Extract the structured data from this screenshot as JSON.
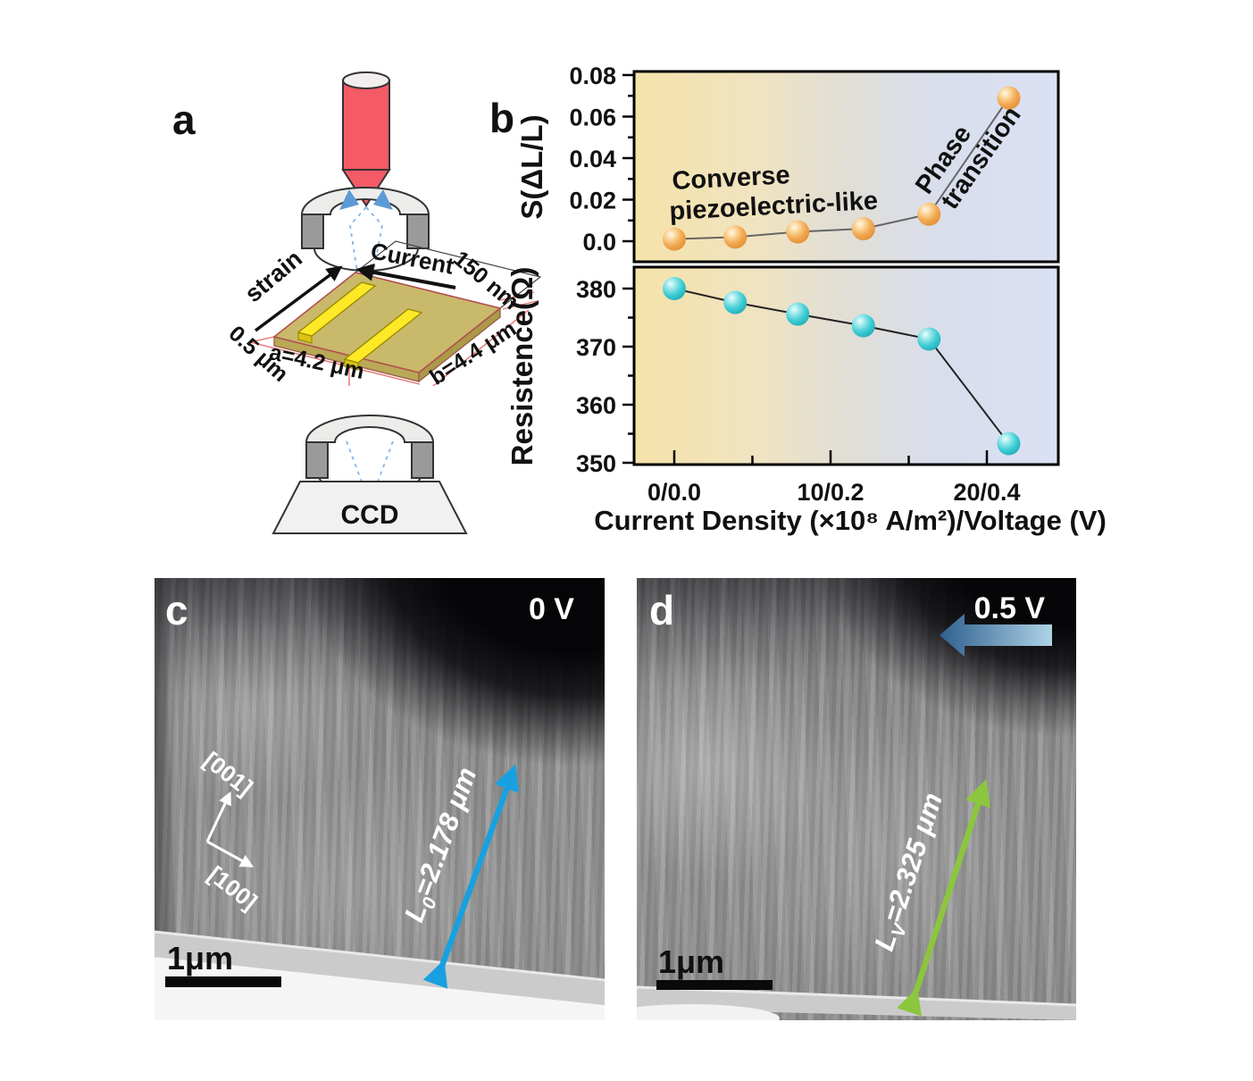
{
  "figure": {
    "panel_a": {
      "letter": "a",
      "labels": {
        "strain": "strain",
        "current": "Current",
        "thickness": "150 nm",
        "edge_left": "0.5 μm",
        "dim_a": "a=4.2 μm",
        "dim_b": "b=4.4 μm",
        "detector": "CCD"
      }
    },
    "panel_b": {
      "letter": "b",
      "chart_data": [
        {
          "type": "scatter",
          "series": [
            {
              "name": "strain S(dL/L)",
              "x": [
                0,
                3.9,
                7.9,
                12.1,
                16.3,
                21.4
              ],
              "y": [
                0.001,
                0.002,
                0.0045,
                0.006,
                0.013,
                0.069
              ]
            }
          ],
          "ylabel": "S(ΔL/L)",
          "ytick_values": [
            0.08,
            0.06,
            0.04,
            0.02,
            0.0
          ],
          "ytick_labels": [
            "0.08",
            "0.06",
            "0.04",
            "0.02",
            "0.0"
          ],
          "ylim": [
            -0.006,
            0.084
          ],
          "xlim": [
            -2.6,
            24.6
          ],
          "grid": false,
          "legend": "none",
          "marker_color": "#f0a455"
        },
        {
          "type": "scatter",
          "series": [
            {
              "name": "resistance",
              "x": [
                0,
                3.9,
                7.9,
                12.1,
                16.3,
                21.4
              ],
              "y": [
                380,
                377.6,
                375.6,
                373.6,
                371.3,
                353.3
              ]
            }
          ],
          "ylabel": "Resistence(Ω)",
          "ytick_values": [
            380,
            370,
            360,
            350
          ],
          "ytick_labels": [
            "380",
            "370",
            "360",
            "350"
          ],
          "ylim": [
            348.4,
            383.4
          ],
          "xlim": [
            -2.6,
            24.6
          ],
          "xtick_values": [
            0,
            10,
            20
          ],
          "xtick_labels": [
            "0/0.0",
            "10/0.2",
            "20/0.4"
          ],
          "xminor_values": [
            5,
            15
          ],
          "xlabel": "Current Density (×10⁸ A/m²)/Voltage (V)",
          "grid": false,
          "legend": "none",
          "marker_color": "#3fcdd4"
        }
      ],
      "annotations": {
        "regime1_line1": "Converse",
        "regime1_line2": "piezoelectric-like",
        "regime2_line1": "Phase",
        "regime2_line2": "transition"
      }
    },
    "panel_c": {
      "letter": "c",
      "voltage": "0 V",
      "axis_up": "[001]",
      "axis_right": "[100]",
      "measurement": {
        "pre": "L",
        "sub": "0",
        "post": "=2.178 μm"
      },
      "scalebar": "1μm"
    },
    "panel_d": {
      "letter": "d",
      "voltage": "0.5 V",
      "measurement": {
        "pre": "L",
        "sub": "V",
        "post": "=2.325 μm"
      },
      "scalebar": "1μm"
    },
    "colors": {
      "accent_orange": "#f0a455",
      "accent_cyan": "#3fcdd4",
      "bg_gradient_left": "#f6e3a9",
      "bg_gradient_right": "#dae1f4",
      "arrow_blue": "#19a0e0",
      "arrow_green": "#8cc63e",
      "objective_red": "#f45b66",
      "electrode_yellow": "#ffe926",
      "sample_olive": "#c9b96a"
    }
  }
}
